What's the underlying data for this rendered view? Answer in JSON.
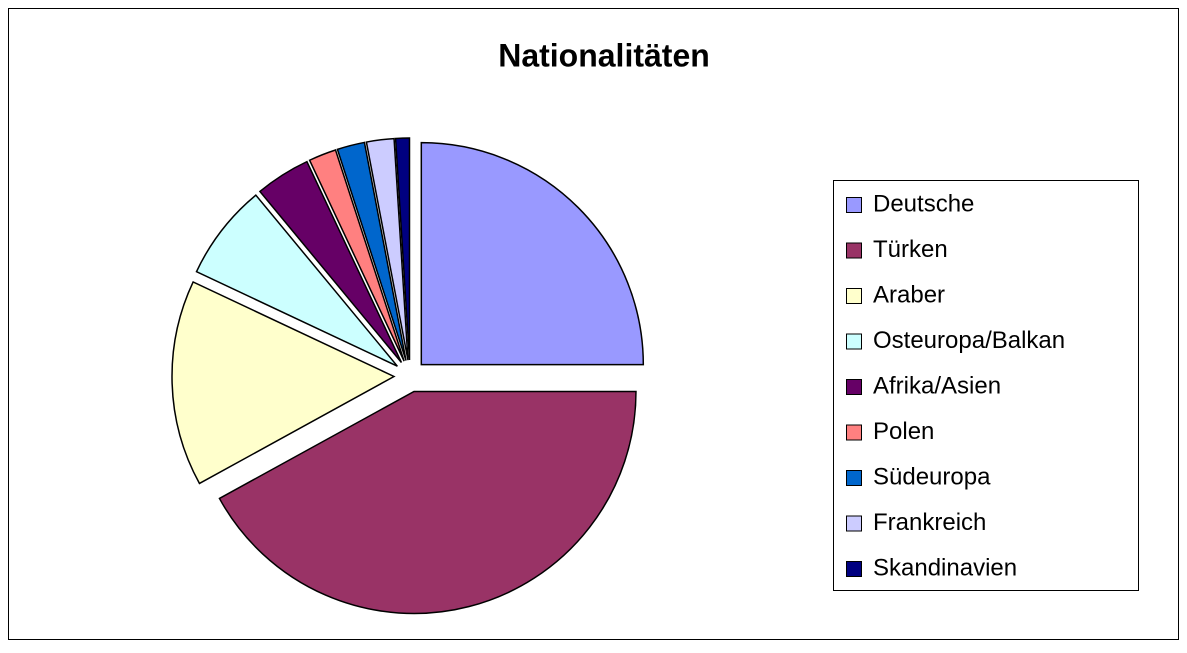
{
  "chart_data": {
    "type": "pie",
    "title": "Nationalitäten",
    "categories": [
      "Deutsche",
      "Türken",
      "Araber",
      "Osteuropa/Balkan",
      "Afrika/Asien",
      "Polen",
      "Südeuropa",
      "Frankreich",
      "Skandinavien"
    ],
    "values": [
      25,
      42,
      15,
      7,
      4,
      2,
      2,
      2,
      1
    ],
    "colors": [
      "#9999ff",
      "#993366",
      "#ffffcc",
      "#ccffff",
      "#660066",
      "#ff8080",
      "#0066cc",
      "#ccccff",
      "#000080"
    ],
    "legend": "right"
  }
}
